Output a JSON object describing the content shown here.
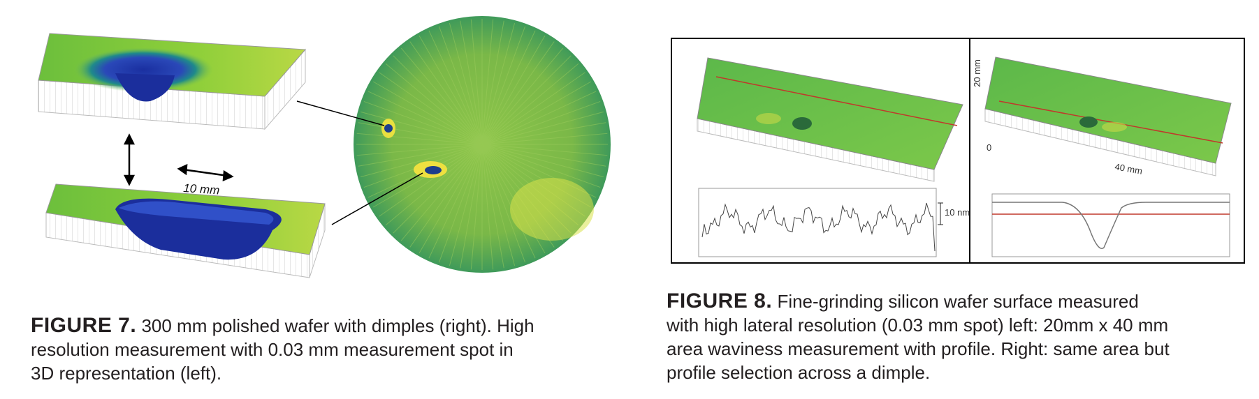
{
  "figure7": {
    "image_label": "10 mm",
    "caption": {
      "label": "FIGURE 7.",
      "lines": [
        "300 mm polished wafer with dimples (right). High",
        "resolution measurement with 0.03 mm measurement spot in",
        "3D representation (left)."
      ]
    }
  },
  "figure8": {
    "left_panel": {
      "scale_label": "10 nm"
    },
    "right_panel": {
      "y_label": "20 mm",
      "x_label": "40 mm",
      "origin_label": "0"
    },
    "caption": {
      "label": "FIGURE 8.",
      "lines": [
        "Fine-grinding silicon wafer surface measured",
        "with high lateral resolution (0.03 mm spot) left: 20mm x 40 mm",
        "area waviness measurement with profile. Right: same area but",
        "profile selection across a dimple."
      ]
    }
  }
}
